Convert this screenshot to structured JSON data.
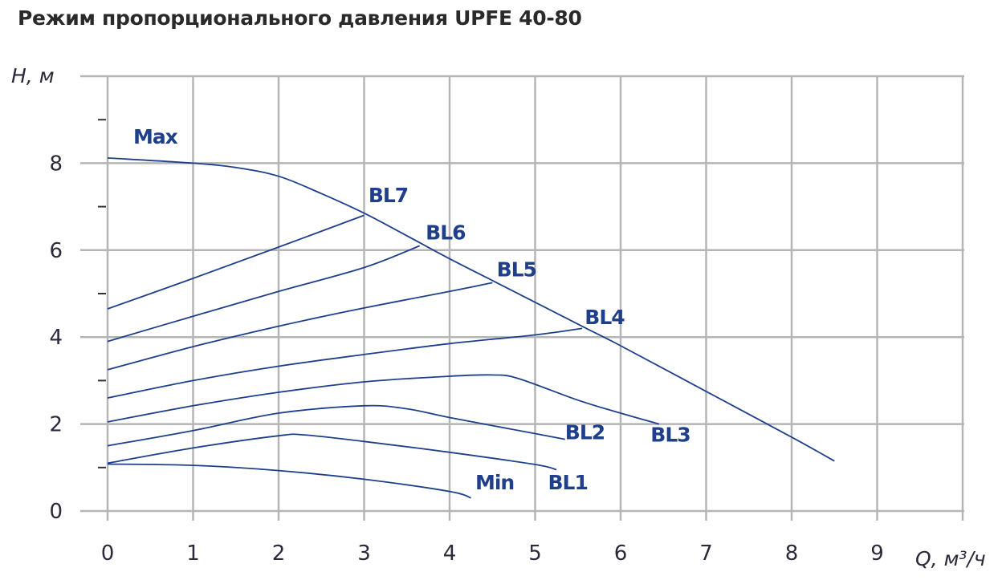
{
  "chart_data": {
    "type": "line",
    "title": "Режим пропорционального давления UPFE 40-80",
    "xlabel": "Q, м³/ч",
    "ylabel": "H, м",
    "xlim": [
      0,
      10
    ],
    "ylim": [
      0,
      10
    ],
    "x_ticks": [
      0,
      1,
      2,
      3,
      4,
      5,
      6,
      7,
      8,
      9
    ],
    "y_ticks": [
      0,
      2,
      4,
      6,
      8
    ],
    "grid": true,
    "colors": {
      "curve": "#1f3f8c",
      "label": "#1f3f8c",
      "grid": "#b5b5b5",
      "text": "#2a2a3a"
    },
    "series": [
      {
        "name": "Max",
        "label_pos": [
          0.3,
          8.45
        ],
        "points": [
          [
            0,
            8.12
          ],
          [
            1,
            8.0
          ],
          [
            1.5,
            7.9
          ],
          [
            2,
            7.7
          ],
          [
            2.5,
            7.3
          ],
          [
            3,
            6.85
          ],
          [
            3.5,
            6.33
          ],
          [
            4,
            5.8
          ],
          [
            4.5,
            5.3
          ],
          [
            5,
            4.8
          ],
          [
            5.6,
            4.2
          ],
          [
            6,
            3.8
          ],
          [
            7,
            2.75
          ],
          [
            8,
            1.7
          ],
          [
            8.5,
            1.15
          ]
        ]
      },
      {
        "name": "BL7",
        "label_pos": [
          3.05,
          7.1
        ],
        "points": [
          [
            0,
            4.65
          ],
          [
            1,
            5.35
          ],
          [
            2,
            6.07
          ],
          [
            3,
            6.8
          ]
        ]
      },
      {
        "name": "BL6",
        "label_pos": [
          3.72,
          6.25
        ],
        "points": [
          [
            0,
            3.9
          ],
          [
            1,
            4.48
          ],
          [
            2,
            5.05
          ],
          [
            3,
            5.6
          ],
          [
            3.65,
            6.1
          ]
        ]
      },
      {
        "name": "BL5",
        "label_pos": [
          4.55,
          5.4
        ],
        "points": [
          [
            0,
            3.25
          ],
          [
            1,
            3.78
          ],
          [
            2,
            4.25
          ],
          [
            3,
            4.67
          ],
          [
            4,
            5.05
          ],
          [
            4.5,
            5.25
          ]
        ]
      },
      {
        "name": "BL4",
        "label_pos": [
          5.58,
          4.3
        ],
        "points": [
          [
            0,
            2.6
          ],
          [
            1,
            3.0
          ],
          [
            2,
            3.33
          ],
          [
            3,
            3.6
          ],
          [
            4,
            3.85
          ],
          [
            5,
            4.05
          ],
          [
            5.55,
            4.2
          ]
        ]
      },
      {
        "name": "BL3",
        "label_pos": [
          6.35,
          1.6
        ],
        "points": [
          [
            0,
            2.05
          ],
          [
            1,
            2.42
          ],
          [
            2,
            2.73
          ],
          [
            3,
            2.97
          ],
          [
            4,
            3.1
          ],
          [
            4.5,
            3.13
          ],
          [
            4.8,
            3.05
          ],
          [
            5.5,
            2.55
          ],
          [
            6,
            2.25
          ],
          [
            6.45,
            2.0
          ]
        ]
      },
      {
        "name": "BL2",
        "label_pos": [
          5.35,
          1.65
        ],
        "points": [
          [
            0,
            1.5
          ],
          [
            1,
            1.85
          ],
          [
            2,
            2.25
          ],
          [
            3,
            2.42
          ],
          [
            3.5,
            2.35
          ],
          [
            4,
            2.15
          ],
          [
            5,
            1.78
          ],
          [
            5.35,
            1.65
          ]
        ]
      },
      {
        "name": "BL1",
        "label_pos": [
          5.15,
          0.5
        ],
        "points": [
          [
            0,
            1.1
          ],
          [
            1,
            1.45
          ],
          [
            2,
            1.73
          ],
          [
            2.3,
            1.75
          ],
          [
            3,
            1.6
          ],
          [
            4,
            1.35
          ],
          [
            5,
            1.07
          ],
          [
            5.25,
            0.95
          ]
        ]
      },
      {
        "name": "Min",
        "label_pos": [
          4.3,
          0.5
        ],
        "points": [
          [
            0,
            1.08
          ],
          [
            1,
            1.05
          ],
          [
            2,
            0.93
          ],
          [
            3,
            0.73
          ],
          [
            4,
            0.45
          ],
          [
            4.25,
            0.3
          ]
        ]
      }
    ]
  }
}
